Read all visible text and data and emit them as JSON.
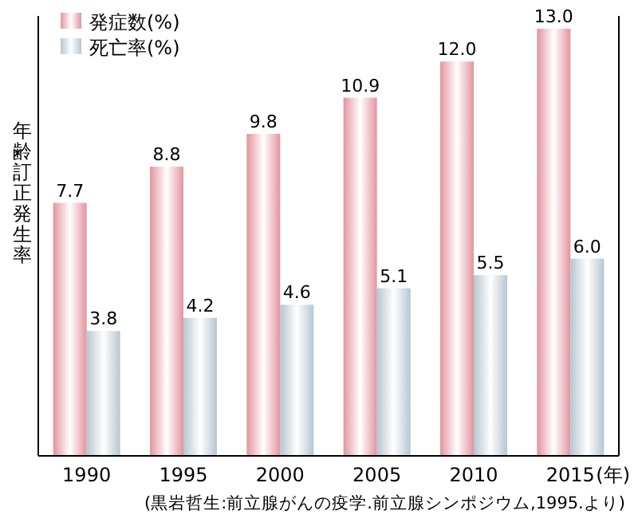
{
  "chart_data": {
    "type": "bar",
    "categories": [
      "1990",
      "1995",
      "2000",
      "2005",
      "2010",
      "2015"
    ],
    "xlabel": "(年)",
    "ylabel": "年齢訂正発生率",
    "series": [
      {
        "name": "発症数(%)",
        "color": "#e3949e",
        "values": [
          7.7,
          8.8,
          9.8,
          10.9,
          12.0,
          13.0
        ],
        "value_labels": [
          "7.7",
          "8.8",
          "9.8",
          "10.9",
          "12.0",
          "13.0"
        ]
      },
      {
        "name": "死亡率(%)",
        "color": "#b7c6d1",
        "values": [
          3.8,
          4.2,
          4.6,
          5.1,
          5.5,
          6.0
        ],
        "value_labels": [
          "3.8",
          "4.2",
          "4.6",
          "5.1",
          "5.5",
          "6.0"
        ]
      }
    ],
    "legend": "top left",
    "annotations": [
      "(黒岩哲生:前立腺がんの疫学.前立腺シンポジウム,1995.より)"
    ]
  }
}
